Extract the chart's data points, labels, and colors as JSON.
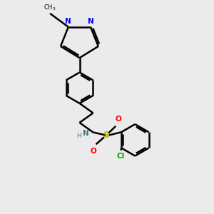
{
  "background_color": "#ebebeb",
  "bond_color": "#000000",
  "bond_width": 1.8,
  "figsize": [
    3.0,
    3.0
  ],
  "dpi": 100,
  "xlim": [
    0.5,
    9.5
  ],
  "ylim": [
    0.5,
    11.5
  ],
  "N_color": "#0000ff",
  "NH_color": "#3a7a7a",
  "S_color": "#b8b800",
  "O_color": "#ff0000",
  "Cl_color": "#00aa00"
}
